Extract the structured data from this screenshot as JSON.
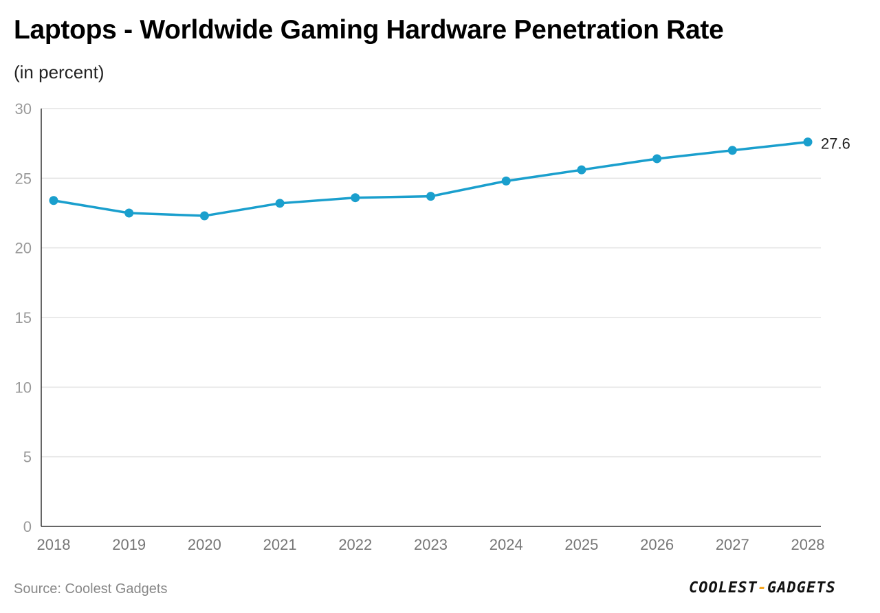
{
  "header": {
    "title": "Laptops - Worldwide Gaming Hardware Penetration Rate",
    "subtitle": "(in percent)"
  },
  "footer": {
    "source": "Source: Coolest Gadgets",
    "brand_left": "COOLEST",
    "brand_sep": "-",
    "brand_right": "GADGETS"
  },
  "colors": {
    "line": "#1a9fcd",
    "grid": "#e3e3e3",
    "axis": "#333333",
    "tick_label": "#999999",
    "x_tick_label": "#777777",
    "data_label": "#222222"
  },
  "chart_data": {
    "type": "line",
    "title": "Laptops - Worldwide Gaming Hardware Penetration Rate",
    "subtitle": "(in percent)",
    "xlabel": "",
    "ylabel": "",
    "categories": [
      "2018",
      "2019",
      "2020",
      "2021",
      "2022",
      "2023",
      "2024",
      "2025",
      "2026",
      "2027",
      "2028"
    ],
    "series": [
      {
        "name": "Penetration rate",
        "values": [
          23.4,
          22.5,
          22.3,
          23.2,
          23.6,
          23.7,
          24.8,
          25.6,
          26.4,
          27.0,
          27.6
        ]
      }
    ],
    "ylim": [
      0,
      30
    ],
    "yticks": [
      0,
      5,
      10,
      15,
      20,
      25,
      30
    ],
    "grid": true,
    "legend": "none",
    "annotations": [
      {
        "category": "2028",
        "text": "27.6"
      }
    ]
  }
}
